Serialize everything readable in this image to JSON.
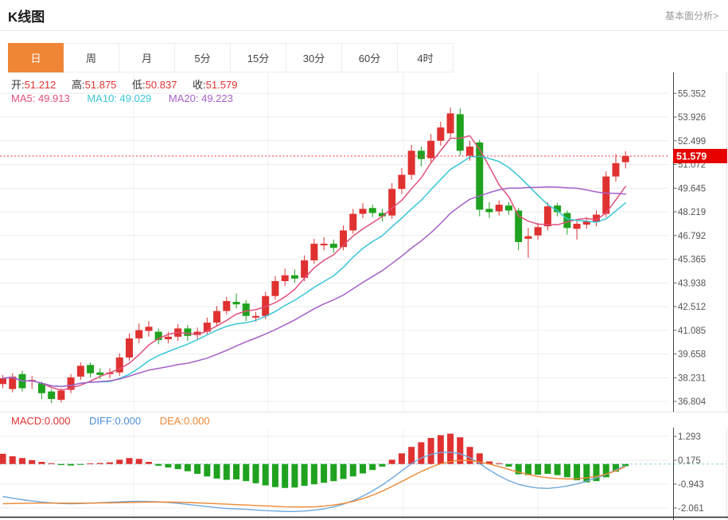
{
  "header": {
    "title": "K线图",
    "link": "基本面分析>"
  },
  "tabs": {
    "items": [
      "日",
      "周",
      "月",
      "5分",
      "15分",
      "30分",
      "60分",
      "4时"
    ],
    "selected_index": 0
  },
  "ohlc_legend": {
    "open_label": "开:",
    "open": "51.212",
    "high_label": "高:",
    "high": "51.875",
    "low_label": "低:",
    "low": "50.837",
    "close_label": "收:",
    "close": "51.579"
  },
  "ma_legend": {
    "ma5": "MA5: 49.913",
    "ma10": "MA10: 49.029",
    "ma20": "MA20: 49.223"
  },
  "price_badge": "51.579",
  "macd_legend": {
    "macd": "MACD:0.000",
    "diff": "DIFF:0.000",
    "dea": "DEA:0.000"
  },
  "colors": {
    "up": "#e03131",
    "down": "#1fa21f",
    "selected_tab_bg": "#ef8636",
    "badge_bg": "#e60000",
    "ma5": "#e0507a",
    "ma10": "#38c6d8",
    "ma20": "#a660c8",
    "diff_line": "#6fa8dc",
    "dea_line": "#ee8833",
    "zero_line": "#8ecfdb",
    "current_price_line": "#ea2f49"
  },
  "chart_data": {
    "type": "candlestick",
    "title": "K线图",
    "price_axis_ticks": [
      55.352,
      53.926,
      52.499,
      51.072,
      49.645,
      48.219,
      46.792,
      45.365,
      43.938,
      42.512,
      41.085,
      39.658,
      38.231,
      36.804
    ],
    "price_range": [
      36.804,
      55.352
    ],
    "current_price": 51.579,
    "last_ohlc": {
      "open": 51.212,
      "high": 51.875,
      "low": 50.837,
      "close": 51.579
    },
    "ma_values": {
      "ma5": 49.913,
      "ma10": 49.029,
      "ma20": 49.223
    },
    "ma_periods": [
      5,
      10,
      20
    ],
    "grid": true,
    "candles_ohlc": [
      [
        37.85,
        38.4,
        37.6,
        38.2
      ],
      [
        37.55,
        38.5,
        37.35,
        38.3
      ],
      [
        38.45,
        38.65,
        37.4,
        37.6
      ],
      [
        38.0,
        38.35,
        37.55,
        38.1
      ],
      [
        37.9,
        38.0,
        36.95,
        37.3
      ],
      [
        37.4,
        37.55,
        36.7,
        36.95
      ],
      [
        36.9,
        37.6,
        36.75,
        37.45
      ],
      [
        37.5,
        38.45,
        37.3,
        38.25
      ],
      [
        38.3,
        39.15,
        38.1,
        38.95
      ],
      [
        39.0,
        39.15,
        38.25,
        38.5
      ],
      [
        38.55,
        38.8,
        38.15,
        38.4
      ],
      [
        38.45,
        38.8,
        38.2,
        38.55
      ],
      [
        38.55,
        39.7,
        38.35,
        39.45
      ],
      [
        39.45,
        40.9,
        39.25,
        40.6
      ],
      [
        40.6,
        41.5,
        40.3,
        41.1
      ],
      [
        41.05,
        41.65,
        40.7,
        41.3
      ],
      [
        41.0,
        41.2,
        40.25,
        40.5
      ],
      [
        40.55,
        41.0,
        40.3,
        40.7
      ],
      [
        40.7,
        41.45,
        40.45,
        41.2
      ],
      [
        41.2,
        41.4,
        40.45,
        40.75
      ],
      [
        40.8,
        41.25,
        40.55,
        41.0
      ],
      [
        41.0,
        41.85,
        40.8,
        41.55
      ],
      [
        41.55,
        42.55,
        41.35,
        42.25
      ],
      [
        42.25,
        43.1,
        42.05,
        42.85
      ],
      [
        42.8,
        43.3,
        42.4,
        42.65
      ],
      [
        42.7,
        42.9,
        41.65,
        41.95
      ],
      [
        41.85,
        42.2,
        41.6,
        41.95
      ],
      [
        41.95,
        43.4,
        41.75,
        43.15
      ],
      [
        43.15,
        44.35,
        42.95,
        44.05
      ],
      [
        44.05,
        44.8,
        43.75,
        44.4
      ],
      [
        44.4,
        44.75,
        43.95,
        44.2
      ],
      [
        44.25,
        45.6,
        44.05,
        45.3
      ],
      [
        45.3,
        46.6,
        45.1,
        46.3
      ],
      [
        46.2,
        46.7,
        45.9,
        46.3
      ],
      [
        46.3,
        46.55,
        45.75,
        46.05
      ],
      [
        46.1,
        47.4,
        45.9,
        47.1
      ],
      [
        47.1,
        48.4,
        46.9,
        48.1
      ],
      [
        48.1,
        48.75,
        47.85,
        48.4
      ],
      [
        48.45,
        48.65,
        47.9,
        48.15
      ],
      [
        48.15,
        48.4,
        47.65,
        47.95
      ],
      [
        48.0,
        49.95,
        47.8,
        49.6
      ],
      [
        49.6,
        50.85,
        49.3,
        50.45
      ],
      [
        50.45,
        52.25,
        50.15,
        51.9
      ],
      [
        51.9,
        52.15,
        50.95,
        51.4
      ],
      [
        51.45,
        52.9,
        51.15,
        52.5
      ],
      [
        52.5,
        53.65,
        52.2,
        53.3
      ],
      [
        52.95,
        54.5,
        52.7,
        54.15
      ],
      [
        54.1,
        54.45,
        51.6,
        51.9
      ],
      [
        51.6,
        52.5,
        51.3,
        52.15
      ],
      [
        52.4,
        52.55,
        47.95,
        48.35
      ],
      [
        48.4,
        48.8,
        47.85,
        48.2
      ],
      [
        48.25,
        48.9,
        48.0,
        48.65
      ],
      [
        48.6,
        48.8,
        48.05,
        48.3
      ],
      [
        48.3,
        48.45,
        45.9,
        46.4
      ],
      [
        46.6,
        47.25,
        45.45,
        46.75
      ],
      [
        46.8,
        47.55,
        46.55,
        47.3
      ],
      [
        47.35,
        48.8,
        47.1,
        48.55
      ],
      [
        48.6,
        48.75,
        47.95,
        48.2
      ],
      [
        48.15,
        48.3,
        46.85,
        47.25
      ],
      [
        47.2,
        47.75,
        46.55,
        47.5
      ],
      [
        47.45,
        47.9,
        47.2,
        47.65
      ],
      [
        47.6,
        48.3,
        47.35,
        48.05
      ],
      [
        48.1,
        50.65,
        47.9,
        50.35
      ],
      [
        50.35,
        51.7,
        50.05,
        51.15
      ],
      [
        51.212,
        51.875,
        50.837,
        51.579
      ]
    ],
    "macd_panel": {
      "axis_ticks": [
        1.293,
        0.175,
        -0.943,
        -2.061
      ],
      "macd_value": 0.0,
      "diff_value": 0.0,
      "dea_value": 0.0,
      "bars": [
        0.48,
        0.36,
        0.28,
        0.18,
        0.1,
        0.04,
        -0.05,
        -0.07,
        -0.04,
        0.03,
        0.05,
        0.08,
        0.2,
        0.28,
        0.24,
        0.1,
        -0.08,
        -0.16,
        -0.24,
        -0.34,
        -0.46,
        -0.58,
        -0.68,
        -0.74,
        -0.72,
        -0.8,
        -0.9,
        -1.0,
        -1.08,
        -1.12,
        -1.1,
        -1.02,
        -0.95,
        -0.88,
        -0.8,
        -0.7,
        -0.58,
        -0.44,
        -0.28,
        -0.12,
        0.2,
        0.5,
        0.8,
        1.02,
        1.22,
        1.35,
        1.42,
        1.25,
        0.8,
        0.5,
        0.12,
        0.04,
        -0.12,
        -0.48,
        -0.52,
        -0.5,
        -0.46,
        -0.52,
        -0.62,
        -0.76,
        -0.86,
        -0.8,
        -0.62,
        -0.36,
        -0.1
      ],
      "diff": [
        -1.52,
        -1.6,
        -1.67,
        -1.73,
        -1.78,
        -1.82,
        -1.85,
        -1.86,
        -1.85,
        -1.83,
        -1.81,
        -1.79,
        -1.77,
        -1.75,
        -1.74,
        -1.75,
        -1.77,
        -1.8,
        -1.84,
        -1.89,
        -1.94,
        -1.99,
        -2.04,
        -2.08,
        -2.1,
        -2.12,
        -2.15,
        -2.18,
        -2.2,
        -2.22,
        -2.22,
        -2.2,
        -2.16,
        -2.1,
        -2.01,
        -1.88,
        -1.71,
        -1.5,
        -1.26,
        -0.98,
        -0.66,
        -0.32,
        0.02,
        0.28,
        0.45,
        0.54,
        0.55,
        0.48,
        0.3,
        0.02,
        -0.28,
        -0.55,
        -0.78,
        -0.95,
        -1.06,
        -1.12,
        -1.14,
        -1.1,
        -1.03,
        -0.93,
        -0.8,
        -0.65,
        -0.48,
        -0.28,
        -0.08
      ],
      "dea": [
        -1.86,
        -1.85,
        -1.84,
        -1.83,
        -1.83,
        -1.83,
        -1.83,
        -1.83,
        -1.83,
        -1.83,
        -1.82,
        -1.82,
        -1.81,
        -1.8,
        -1.79,
        -1.78,
        -1.78,
        -1.78,
        -1.79,
        -1.8,
        -1.82,
        -1.84,
        -1.86,
        -1.88,
        -1.9,
        -1.92,
        -1.94,
        -1.96,
        -1.98,
        -2.0,
        -2.01,
        -2.01,
        -2.0,
        -1.97,
        -1.92,
        -1.85,
        -1.75,
        -1.62,
        -1.46,
        -1.27,
        -1.05,
        -0.82,
        -0.58,
        -0.35,
        -0.15,
        0.01,
        0.12,
        0.17,
        0.16,
        0.1,
        0.0,
        -0.12,
        -0.25,
        -0.38,
        -0.49,
        -0.58,
        -0.64,
        -0.68,
        -0.7,
        -0.69,
        -0.65,
        -0.58,
        -0.47,
        -0.32,
        -0.12
      ]
    }
  }
}
